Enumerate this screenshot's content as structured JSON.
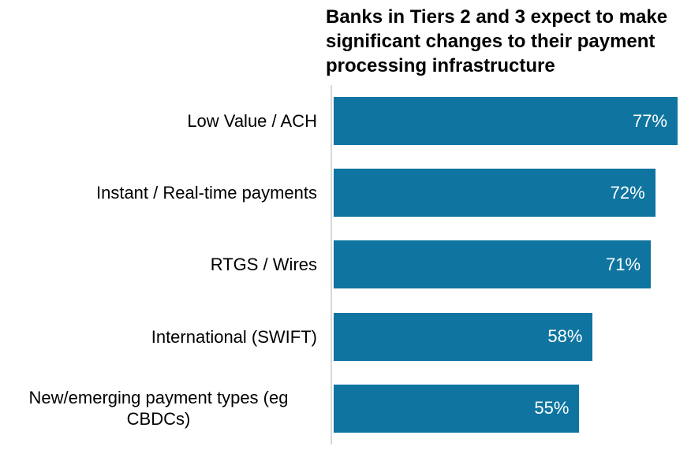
{
  "title": {
    "lines": [
      "Banks in Tiers 2 and 3 expect to make",
      "significant changes to their payment",
      "processing infrastructure"
    ]
  },
  "chart_data": {
    "type": "bar",
    "orientation": "horizontal",
    "title": "Banks in Tiers 2 and 3 expect to make significant changes to their payment processing infrastructure",
    "categories": [
      "Low Value / ACH",
      "Instant / Real-time payments",
      "RTGS / Wires",
      "International (SWIFT)",
      "New/emerging payment types (eg CBDCs)"
    ],
    "values": [
      77,
      72,
      71,
      58,
      55
    ],
    "value_labels": [
      "77%",
      "72%",
      "71%",
      "58%",
      "55%"
    ],
    "xlabel": "",
    "ylabel": "",
    "xlim": [
      0,
      80
    ],
    "grid": false,
    "legend": false,
    "colors": {
      "bar": "#0F75A0",
      "axis_line": "#D9D9D9",
      "category_label": "#000000",
      "value_label": "#FFFFFF",
      "title": "#000000",
      "background": "#FFFFFF"
    }
  }
}
